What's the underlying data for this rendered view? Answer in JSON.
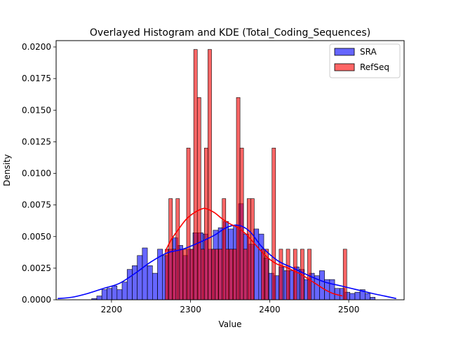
{
  "chart_data": {
    "type": "bar",
    "title": "Overlayed Histogram and KDE (Total_Coding_Sequences)",
    "xlabel": "Value",
    "ylabel": "Density",
    "xlim": [
      2130,
      2570
    ],
    "ylim": [
      0,
      0.0205
    ],
    "xticks": [
      2200,
      2300,
      2400,
      2500
    ],
    "xtick_labels": [
      "2200",
      "2300",
      "2400",
      "2500"
    ],
    "yticks": [
      0,
      0.0025,
      0.005,
      0.0075,
      0.01,
      0.0125,
      0.015,
      0.0175,
      0.02
    ],
    "ytick_labels": [
      "0.0000",
      "0.0025",
      "0.0050",
      "0.0075",
      "0.0100",
      "0.0125",
      "0.0150",
      "0.0175",
      "0.0200"
    ],
    "legend": {
      "position": "top-right",
      "entries": [
        "SRA",
        "RefSeq"
      ]
    },
    "grid": false,
    "series": [
      {
        "name": "SRA",
        "kind": "histogram",
        "color": "#0000ff",
        "edge_color": "#000000",
        "alpha": 0.6,
        "bin_start": 2175,
        "bin_width": 6.4,
        "densities": [
          0.0001,
          0.0003,
          0.0008,
          0.0009,
          0.0011,
          0.0008,
          0.0014,
          0.0024,
          0.0027,
          0.0035,
          0.0041,
          0.0027,
          0.0021,
          0.004,
          0.0035,
          0.004,
          0.0049,
          0.0043,
          0.0035,
          0.004,
          0.0053,
          0.0053,
          0.0052,
          0.004,
          0.0055,
          0.0057,
          0.0062,
          0.0056,
          0.0059,
          0.0076,
          0.0052,
          0.0044,
          0.0056,
          0.0052,
          0.0033,
          0.0021,
          0.0019,
          0.0026,
          0.0023,
          0.0023,
          0.0026,
          0.0024,
          0.0016,
          0.0021,
          0.0019,
          0.0023,
          0.0016,
          0.0016,
          0.0009,
          0.0009,
          0.0006,
          0.0005,
          0.0006,
          0.0008,
          0.0005,
          0.0002
        ]
      },
      {
        "name": "RefSeq",
        "kind": "histogram",
        "color": "#ff0000",
        "edge_color": "#000000",
        "alpha": 0.6,
        "bin_start": 2268,
        "bin_width": 4.5,
        "densities": [
          0.004,
          0.008,
          0.004,
          0.008,
          0.004,
          0.004,
          0.012,
          0.004,
          0.0198,
          0.016,
          0.004,
          0.012,
          0.0198,
          0.004,
          0.004,
          0.004,
          0.008,
          0.004,
          0.004,
          0.004,
          0.016,
          0.012,
          0.004,
          0.008,
          0.008,
          0,
          0,
          0.004,
          0.004,
          0,
          0.012,
          0,
          0.004,
          0,
          0.004,
          0,
          0.004,
          0,
          0.004,
          0,
          0.004,
          0,
          0,
          0,
          0,
          0,
          0,
          0,
          0,
          0,
          0.004
        ]
      },
      {
        "name": "SRA KDE",
        "kind": "line",
        "color": "#0000ff",
        "x": [
          2132,
          2150,
          2170,
          2190,
          2210,
          2230,
          2250,
          2270,
          2290,
          2310,
          2330,
          2345,
          2360,
          2375,
          2390,
          2410,
          2430,
          2450,
          2470,
          2490,
          2510,
          2530,
          2545,
          2560
        ],
        "y": [
          0.0001,
          0.0002,
          0.0005,
          0.0009,
          0.0013,
          0.0021,
          0.003,
          0.0037,
          0.004,
          0.0045,
          0.0051,
          0.0057,
          0.0059,
          0.0054,
          0.0042,
          0.0031,
          0.0025,
          0.0019,
          0.0014,
          0.0011,
          0.0008,
          0.0005,
          0.0003,
          0.0001
        ]
      },
      {
        "name": "RefSeq KDE",
        "kind": "line",
        "color": "#ff0000",
        "x": [
          2268,
          2275,
          2285,
          2295,
          2305,
          2315,
          2320,
          2330,
          2340,
          2350,
          2360,
          2370,
          2380,
          2390,
          2400,
          2410,
          2420,
          2430,
          2440,
          2450,
          2460,
          2470,
          2480,
          2492
        ],
        "y": [
          0.0038,
          0.0047,
          0.0056,
          0.0064,
          0.0069,
          0.0072,
          0.0072,
          0.0069,
          0.0064,
          0.006,
          0.0057,
          0.0052,
          0.0045,
          0.0038,
          0.0032,
          0.0028,
          0.0026,
          0.0023,
          0.002,
          0.0016,
          0.0012,
          0.0008,
          0.0005,
          0.0003
        ]
      }
    ]
  }
}
